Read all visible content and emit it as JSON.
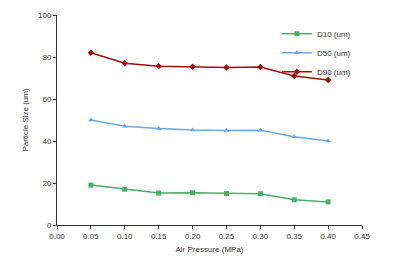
{
  "chart_data": {
    "type": "line",
    "x_label": "Air Pressure (MPa)",
    "y_label": "Particle Size (um)",
    "x": [
      0.05,
      0.1,
      0.15,
      0.2,
      0.25,
      0.3,
      0.35,
      0.4
    ],
    "series": [
      {
        "name": "D10 (um)",
        "color": "#4caf6a",
        "marker": "square",
        "values": [
          19,
          17,
          15.2,
          15.4,
          15,
          14.9,
          12,
          11
        ]
      },
      {
        "name": "D50 (um)",
        "color": "#6fa8dc",
        "marker": "triangle-up",
        "values": [
          50,
          47,
          46,
          45.2,
          45,
          45.1,
          42,
          40
        ]
      },
      {
        "name": "D90 (um)",
        "color": "#a01010",
        "marker": "diamond",
        "values": [
          82,
          77,
          75.6,
          75.3,
          75,
          75.2,
          71,
          69
        ]
      }
    ],
    "xlim": [
      0,
      0.45
    ],
    "xticks": [
      {
        "value": 0,
        "label": "0.00"
      },
      {
        "value": 0.05,
        "label": "0.05"
      },
      {
        "value": 0.1,
        "label": "0.10"
      },
      {
        "value": 0.15,
        "label": "0.15"
      },
      {
        "value": 0.2,
        "label": "0.20"
      },
      {
        "value": 0.25,
        "label": "0.25"
      },
      {
        "value": 0.3,
        "label": "0.30"
      },
      {
        "value": 0.35,
        "label": "0.35"
      },
      {
        "value": 0.4,
        "label": "0.40"
      },
      {
        "value": 0.45,
        "label": "0.45"
      }
    ],
    "ylim": [
      0,
      100
    ],
    "yticks": [
      0,
      20,
      40,
      60,
      80,
      100
    ],
    "grid": false,
    "legend": "top right"
  }
}
